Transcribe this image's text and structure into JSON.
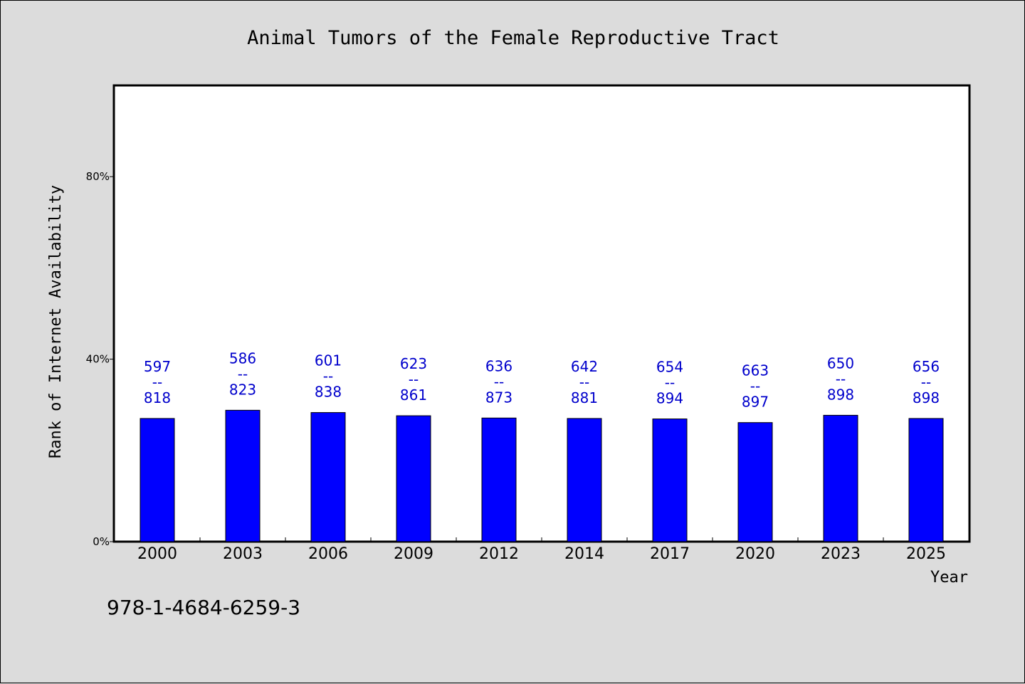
{
  "chart_data": {
    "type": "bar",
    "title": "Animal Tumors of the Female Reproductive Tract",
    "xlabel": "Year",
    "ylabel": "Rank of Internet Availability",
    "categories": [
      "2000",
      "2003",
      "2006",
      "2009",
      "2012",
      "2014",
      "2017",
      "2020",
      "2023",
      "2025"
    ],
    "values": [
      27,
      28.8,
      28.3,
      27.6,
      27.1,
      27,
      26.9,
      26.1,
      27.7,
      27
    ],
    "data_labels": [
      {
        "top": "597",
        "mid": "--",
        "bottom": "818"
      },
      {
        "top": "586",
        "mid": "--",
        "bottom": "823"
      },
      {
        "top": "601",
        "mid": "--",
        "bottom": "838"
      },
      {
        "top": "623",
        "mid": "--",
        "bottom": "861"
      },
      {
        "top": "636",
        "mid": "--",
        "bottom": "873"
      },
      {
        "top": "642",
        "mid": "--",
        "bottom": "881"
      },
      {
        "top": "654",
        "mid": "--",
        "bottom": "894"
      },
      {
        "top": "663",
        "mid": "--",
        "bottom": "897"
      },
      {
        "top": "650",
        "mid": "--",
        "bottom": "898"
      },
      {
        "top": "656",
        "mid": "--",
        "bottom": "898"
      }
    ],
    "ylim": [
      0,
      100
    ],
    "yticks": [
      0,
      40,
      80
    ],
    "ytick_labels": [
      "0%",
      "40%",
      "80%"
    ],
    "grid": false,
    "legend": "none",
    "colors": {
      "bar": "#0000ff",
      "data_label": "#0000cc",
      "plot_background": "#ffffff",
      "page_background": "#dcdcdc"
    }
  },
  "footnote": "978-1-4684-6259-3"
}
